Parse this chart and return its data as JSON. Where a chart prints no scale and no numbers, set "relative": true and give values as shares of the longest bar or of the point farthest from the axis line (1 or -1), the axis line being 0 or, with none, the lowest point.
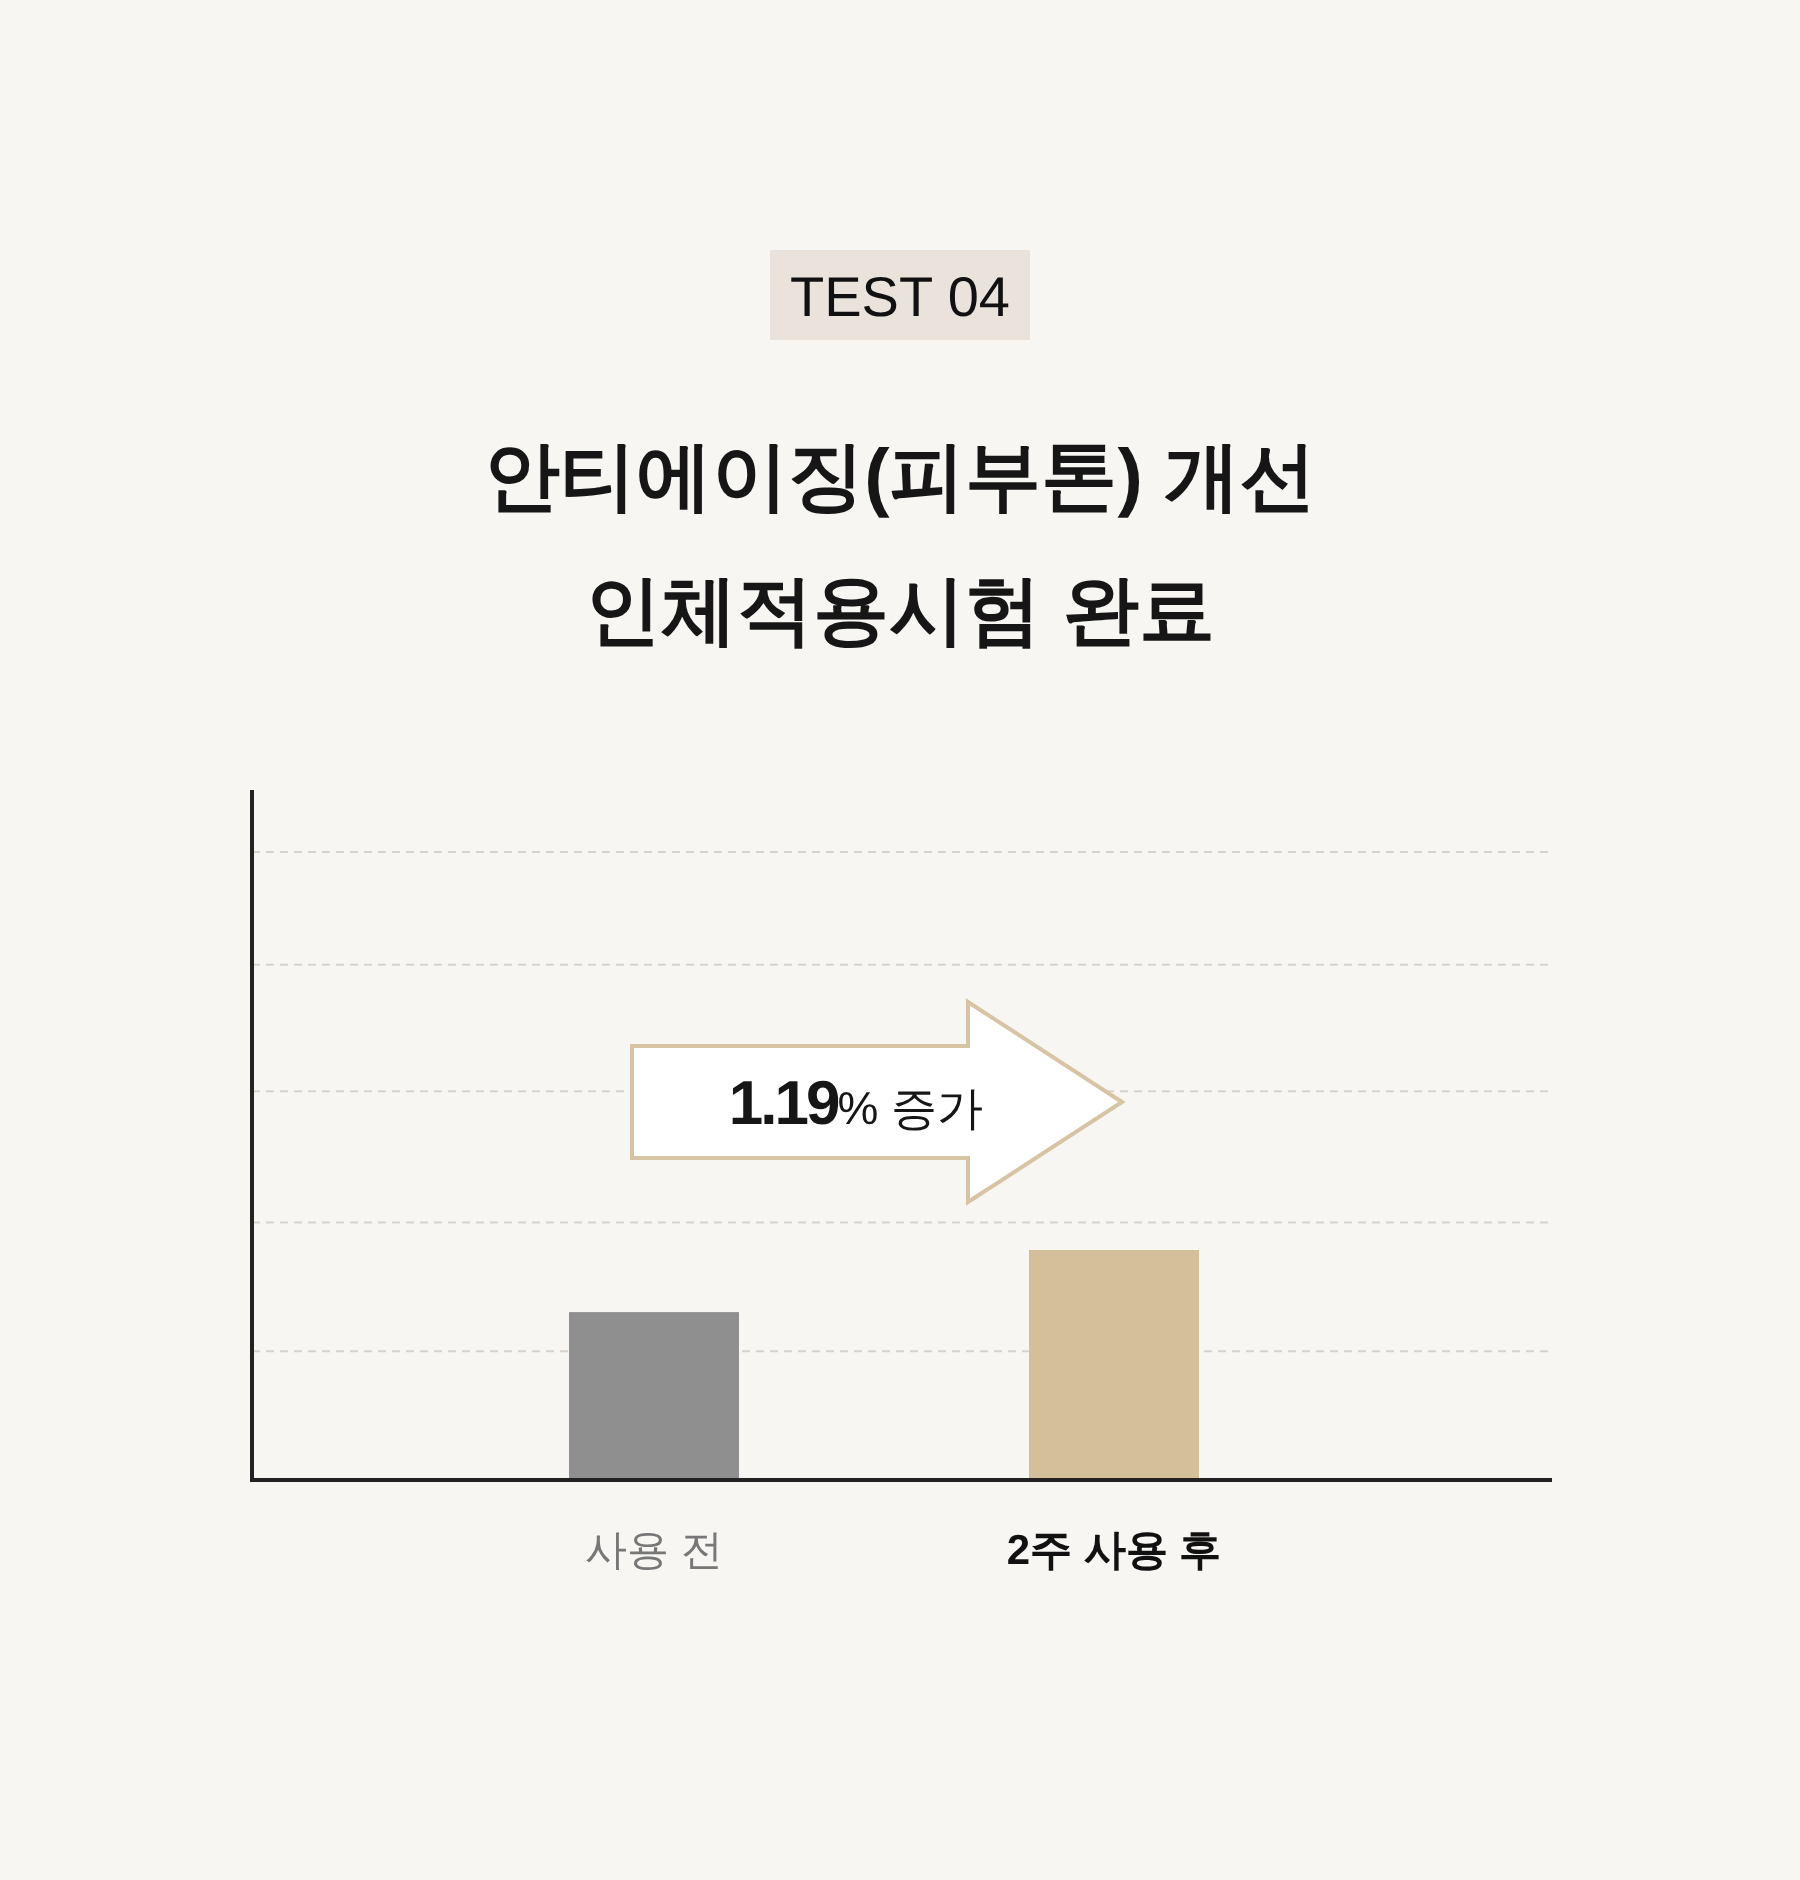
{
  "chart_data": {
    "type": "bar",
    "subtitle": "TEST 04",
    "title": "안티에이징(피부톤) 개선\n인체적용시험 완료",
    "categories": [
      "사용 전",
      "2주 사용 후"
    ],
    "values": [
      0.73,
      1
    ],
    "colors": [
      "#8f8f8f",
      "#d4bf9b"
    ],
    "relative": true,
    "ref_lines": [
      {
        "axis": "y",
        "value": 0.56,
        "color": "#d6d3cd",
        "line_style": "dashed"
      },
      {
        "axis": "y",
        "value": 1.12,
        "color": "#d6d3cd",
        "line_style": "dashed"
      },
      {
        "axis": "y",
        "value": 1.69,
        "color": "#d6d3cd",
        "line_style": "dashed"
      },
      {
        "axis": "y",
        "value": 2.24,
        "color": "#d6d3cd",
        "line_style": "dashed"
      },
      {
        "axis": "y",
        "value": 2.73,
        "color": "#d6d3cd",
        "line_style": "dashed"
      }
    ],
    "annotations": [
      "1.19% 증가"
    ]
  }
}
